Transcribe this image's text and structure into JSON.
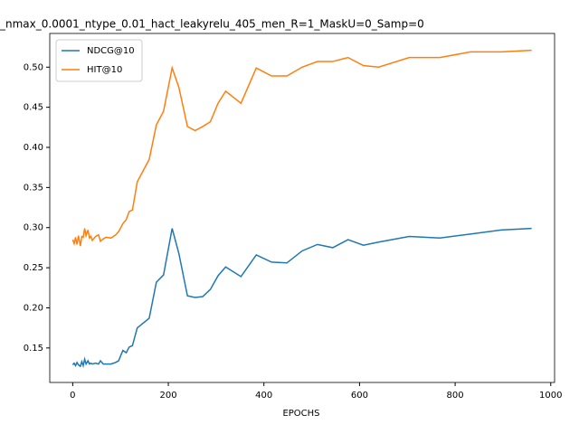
{
  "chart_data": {
    "type": "line",
    "title": "_nmax_0.0001_ntype_0.01_hact_leakyrelu_405_men_R=1_MaskU=0_Samp=0",
    "xlabel": "EPOCHS",
    "x": [
      0,
      3,
      6,
      9,
      12,
      16,
      19,
      22,
      25,
      28,
      32,
      35,
      38,
      41,
      48,
      54,
      58,
      64,
      70,
      80,
      90,
      96,
      105,
      112,
      118,
      125,
      135,
      160,
      175,
      190,
      208,
      222,
      240,
      256,
      272,
      288,
      304,
      320,
      352,
      384,
      416,
      448,
      480,
      512,
      544,
      576,
      608,
      640,
      704,
      768,
      832,
      896,
      960
    ],
    "series": [
      {
        "name": "NDCG@10",
        "color": "#1f77b4",
        "values": [
          0.129,
          0.131,
          0.128,
          0.132,
          0.129,
          0.127,
          0.133,
          0.128,
          0.136,
          0.13,
          0.134,
          0.13,
          0.131,
          0.13,
          0.131,
          0.13,
          0.134,
          0.13,
          0.13,
          0.13,
          0.132,
          0.134,
          0.147,
          0.144,
          0.151,
          0.153,
          0.175,
          0.187,
          0.232,
          0.241,
          0.299,
          0.268,
          0.215,
          0.213,
          0.214,
          0.223,
          0.24,
          0.251,
          0.239,
          0.266,
          0.257,
          0.256,
          0.271,
          0.279,
          0.275,
          0.285,
          0.278,
          0.282,
          0.289,
          0.287,
          0.292,
          0.297,
          0.299
        ]
      },
      {
        "name": "HIT@10",
        "color": "#ff7f0e",
        "values": [
          0.285,
          0.28,
          0.288,
          0.279,
          0.29,
          0.277,
          0.289,
          0.288,
          0.299,
          0.29,
          0.297,
          0.287,
          0.289,
          0.284,
          0.289,
          0.291,
          0.283,
          0.286,
          0.288,
          0.287,
          0.291,
          0.295,
          0.305,
          0.31,
          0.32,
          0.322,
          0.357,
          0.385,
          0.428,
          0.445,
          0.499,
          0.475,
          0.426,
          0.421,
          0.426,
          0.432,
          0.455,
          0.47,
          0.455,
          0.499,
          0.489,
          0.489,
          0.5,
          0.507,
          0.507,
          0.512,
          0.502,
          0.5,
          0.512,
          0.512,
          0.519,
          0.519,
          0.521
        ]
      }
    ],
    "xlim": [
      -48,
      1008
    ],
    "ylim": [
      0.107,
      0.542
    ],
    "xticks": [
      0,
      200,
      400,
      600,
      800,
      1000
    ],
    "yticks": [
      0.15,
      {
        "value": 0.2,
        "label": "0.20"
      },
      0.25,
      {
        "value": 0.3,
        "label": "0.30"
      },
      0.35,
      {
        "value": 0.4,
        "label": "0.40"
      },
      0.45,
      {
        "value": 0.5,
        "label": "0.50"
      }
    ],
    "legend": "upper left"
  }
}
